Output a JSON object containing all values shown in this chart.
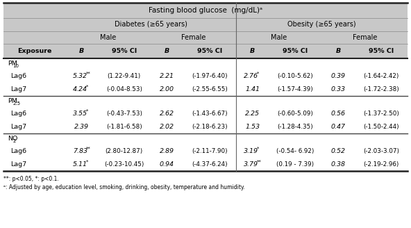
{
  "title": "Fasting blood glucose  (mg/dL)ᵃ",
  "col_group1_label": "Diabetes (≥65 years)",
  "col_group2_label": "Obesity (≥65 years)",
  "subgroup_labels": [
    "Male",
    "Female",
    "Male",
    "Female"
  ],
  "col_headers": [
    "Exposure",
    "B",
    "95% CI",
    "B",
    "95% CI",
    "B",
    "95% CI",
    "B",
    "95% CI"
  ],
  "sections": [
    {
      "header": "PM",
      "header_sub": "10",
      "rows": [
        [
          "Lag6",
          "5.32",
          "**",
          "(1.22-9.41)",
          "2.21",
          "",
          "(-1.97-6.40)",
          "2.76",
          "*",
          "(-0.10-5.62)",
          "0.39",
          "",
          "(-1.64-2.42)"
        ],
        [
          "Lag7",
          "4.24",
          "*",
          "(-0.04-8.53)",
          "2.00",
          "",
          "(-2.55-6.55)",
          "1.41",
          "",
          "(-1.57-4.39)",
          "0.33",
          "",
          "(-1.72-2.38)"
        ]
      ]
    },
    {
      "header": "PM",
      "header_sub": "2.5",
      "rows": [
        [
          "Lag6",
          "3.55",
          "*",
          "(-0.43-7.53)",
          "2.62",
          "",
          "(-1.43-6.67)",
          "2.25",
          "",
          "(-0.60-5.09)",
          "0.56",
          "",
          "(-1.37-2.50)"
        ],
        [
          "Lag7",
          "2.39",
          "",
          "(-1.81-6.58)",
          "2.02",
          "",
          "(-2.18-6.23)",
          "1.53",
          "",
          "(-1.28-4.35)",
          "0.47",
          "",
          "(-1.50-2.44)"
        ]
      ]
    },
    {
      "header": "NO",
      "header_sub": "2",
      "rows": [
        [
          "Lag6",
          "7.83",
          "**",
          "(2.80-12.87)",
          "2.89",
          "",
          "(-2.11-7.90)",
          "3.19",
          "*",
          "(-0.54- 6.92)",
          "0.52",
          "",
          "(-2.03-3.07)"
        ],
        [
          "Lag7",
          "5.11",
          "*",
          "(-0.23-10.45)",
          "0.94",
          "",
          "(-4.37-6.24)",
          "3.79",
          "**",
          "(0.19 - 7.39)",
          "0.38",
          "",
          "(-2.19-2.96)"
        ]
      ]
    }
  ],
  "footnote1": "**: p<0.05, *: p<0.1.",
  "footnote2": "ᵃ: Adjusted by age, education level, smoking, drinking, obesity, temperature and humidity.",
  "header_bg": "#c8c8c8",
  "col_header_bg": "#ffffff",
  "white_bg": "#ffffff",
  "figsize": [
    5.92,
    3.28
  ],
  "dpi": 100
}
